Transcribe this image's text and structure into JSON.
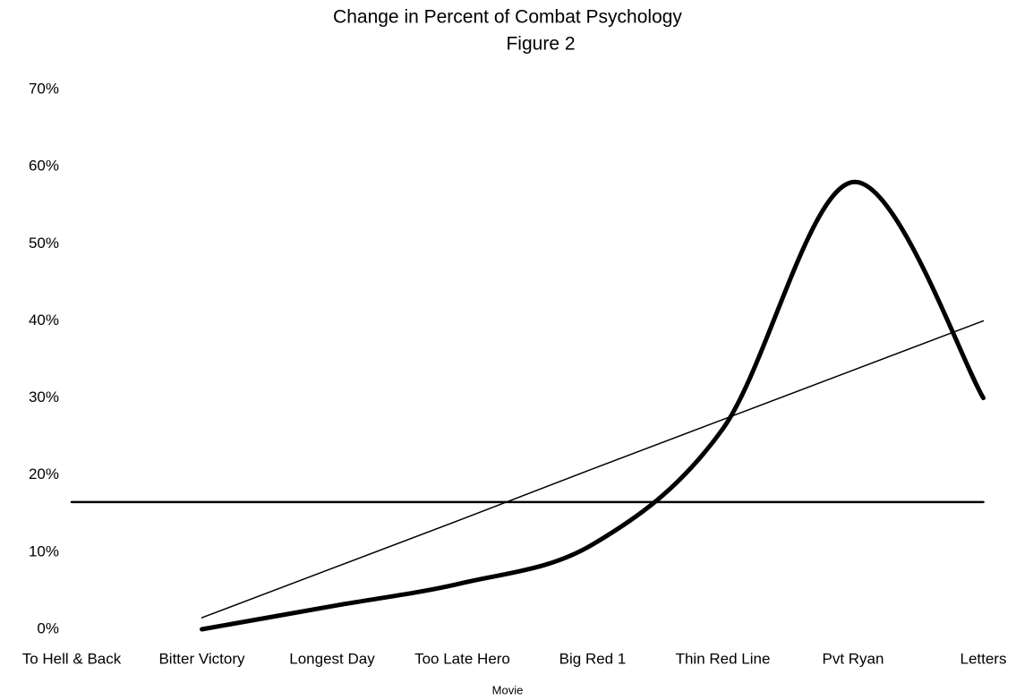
{
  "chart_data": {
    "type": "line",
    "title": "Change in Percent of Combat Psychology",
    "subtitle": "Figure 2",
    "x_label": "Movie",
    "categories": [
      "To Hell & Back",
      "Bitter Victory",
      "Longest Day",
      "Too Late Hero",
      "Big Red 1",
      "Thin Red Line",
      "Pvt Ryan",
      "Letters"
    ],
    "series": [
      {
        "color": "#000000",
        "line_width": 5,
        "smooth": true,
        "values": [
          null,
          0,
          3,
          6,
          11,
          26,
          58,
          30
        ]
      },
      {
        "color": "#000000",
        "line_width": 1.5,
        "smooth": false,
        "values": [
          null,
          1.5,
          7.9,
          14.3,
          20.8,
          27.2,
          33.6,
          40
        ]
      },
      {
        "color": "#000000",
        "line_width": 2.5,
        "smooth": false,
        "values": [
          16.5,
          16.5,
          16.5,
          16.5,
          16.5,
          16.5,
          16.5,
          16.5
        ]
      }
    ],
    "ylim": [
      0,
      70
    ],
    "yticks": [
      {
        "value": 0,
        "label": "0%"
      },
      {
        "value": 10,
        "label": "10%"
      },
      {
        "value": 20,
        "label": "20%"
      },
      {
        "value": 30,
        "label": "30%"
      },
      {
        "value": 40,
        "label": "40%"
      },
      {
        "value": 50,
        "label": "50%"
      },
      {
        "value": 60,
        "label": "60%"
      },
      {
        "value": 70,
        "label": "70%"
      }
    ],
    "grid": false
  }
}
